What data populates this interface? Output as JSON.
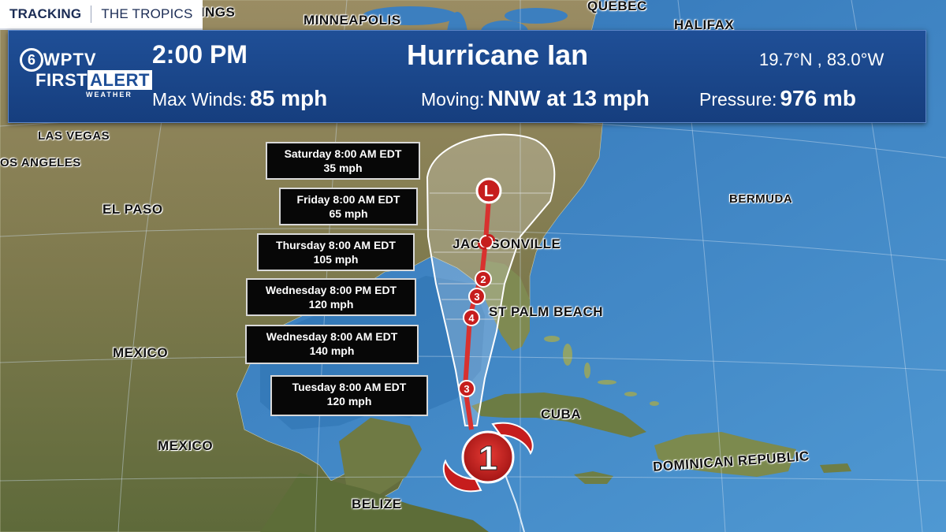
{
  "topbar": {
    "tracking": "TRACKING",
    "section": "THE TROPICS"
  },
  "logo": {
    "channel": "6",
    "call": "WPTV",
    "first": "FIRST",
    "alert": "ALERT",
    "weather": "WEATHER"
  },
  "header": {
    "time": "2:00 PM",
    "storm_name": "Hurricane Ian",
    "coords": "19.7°N , 83.0°W",
    "max_winds_label": "Max Winds:",
    "max_winds_value": "85 mph",
    "moving_label": "Moving:",
    "moving_value": "NNW at 13 mph",
    "pressure_label": "Pressure:",
    "pressure_value": "976 mb"
  },
  "forecast_points": [
    {
      "time": "Saturday 8:00 AM EDT",
      "speed": "35 mph",
      "category": "L"
    },
    {
      "time": "Friday 8:00 AM EDT",
      "speed": "65 mph",
      "category": ""
    },
    {
      "time": "Thursday 8:00 AM EDT",
      "speed": "105 mph",
      "category": "2"
    },
    {
      "time": "Wednesday 8:00 PM EDT",
      "speed": "120 mph",
      "category": "3"
    },
    {
      "time": "Wednesday 8:00 AM EDT",
      "speed": "140 mph",
      "category": "4"
    },
    {
      "time": "Tuesday 8:00 AM EDT",
      "speed": "120 mph",
      "category": "3"
    }
  ],
  "current_category": "1",
  "map_labels": {
    "billings": "BILLINGS",
    "minneapolis": "MINNEAPOLIS",
    "quebec": "QUEBEC",
    "halifax": "HALIFAX",
    "las_vegas": "LAS VEGAS",
    "los_angeles": "OS ANGELES",
    "el_paso": "EL PASO",
    "jacksonville": "JACKSONVILLE",
    "west_palm_beach": "ST PALM BEACH",
    "bermuda": "BERMUDA",
    "mexico_1": "MEXICO",
    "mexico_2": "MEXICO",
    "cuba": "CUBA",
    "dominican_republic": "DOMINICAN REPUBLIC",
    "belize": "BELIZE"
  },
  "colors": {
    "ocean": "#3f86c4",
    "land": "#8a7d5a",
    "header_blue": "#1f4f97",
    "storm_red": "#c61d1d",
    "track_red": "#d8312f"
  }
}
